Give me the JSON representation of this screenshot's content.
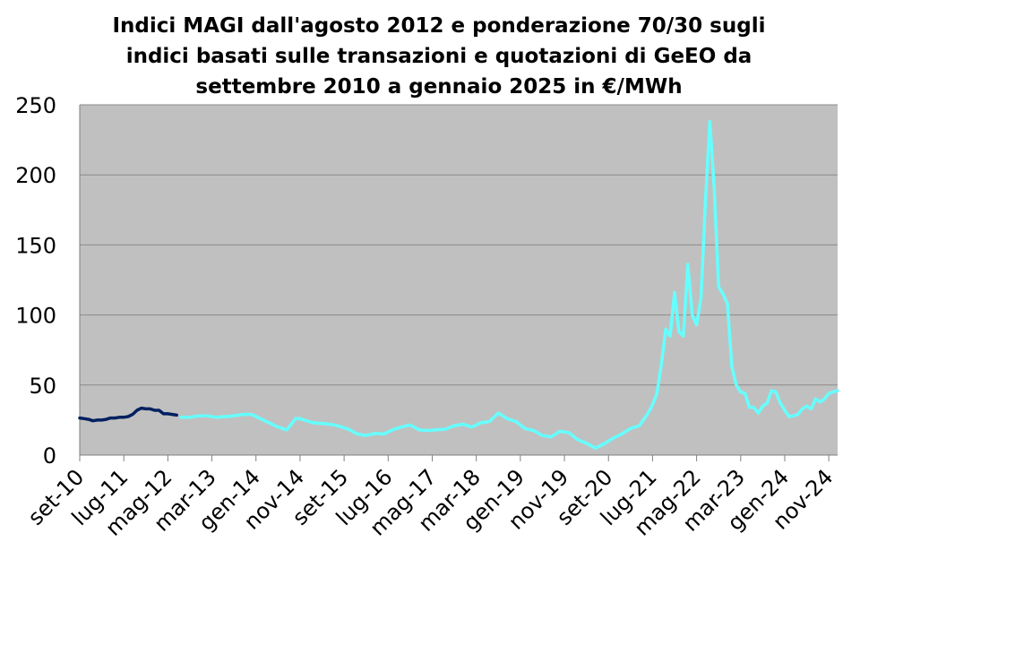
{
  "chart_data": {
    "type": "line",
    "title_lines": [
      "Indici MAGI dall'agosto 2012 e ponderazione 70/30 sugli",
      "indici basati sulle transazioni e quotazioni di GeEO da",
      "settembre 2010 a gennaio 2025 in €/MWh"
    ],
    "xlabel": "",
    "ylabel": "",
    "ylim": [
      0,
      250
    ],
    "yticks": [
      "0",
      "50",
      "100",
      "150",
      "200",
      "250"
    ],
    "xtick_labels": [
      "set-10",
      "lug-11",
      "mag-12",
      "mar-13",
      "gen-14",
      "nov-14",
      "set-15",
      "lug-16",
      "mag-17",
      "mar-18",
      "gen-19",
      "nov-19",
      "set-20",
      "lug-21",
      "mag-22",
      "mar-23",
      "gen-24",
      "nov-24"
    ],
    "grid": true,
    "legend": "none",
    "plot_background": "#c0c0c0",
    "series": [
      {
        "color": "#002060",
        "x": [
          "2010-09",
          "2010-10",
          "2010-11",
          "2010-12",
          "2011-01",
          "2011-02",
          "2011-03",
          "2011-04",
          "2011-05",
          "2011-06",
          "2011-07",
          "2011-08",
          "2011-09",
          "2011-10",
          "2011-11",
          "2011-12",
          "2012-01",
          "2012-02",
          "2012-03",
          "2012-04",
          "2012-05",
          "2012-06",
          "2012-07"
        ],
        "values": [
          26.5,
          26,
          25.5,
          24.5,
          25,
          25,
          25.5,
          26.5,
          26.5,
          27,
          27,
          27.5,
          29,
          32,
          33.5,
          33,
          33,
          32,
          32,
          29.5,
          29.5,
          29,
          28.5
        ]
      },
      {
        "color": "#66ffff",
        "x": [
          "2012-08",
          "2012-10",
          "2012-12",
          "2013-02",
          "2013-04",
          "2013-06",
          "2013-08",
          "2013-10",
          "2013-12",
          "2014-02",
          "2014-04",
          "2014-06",
          "2014-08",
          "2014-10",
          "2014-11",
          "2014-12",
          "2015-02",
          "2015-04",
          "2015-06",
          "2015-08",
          "2015-10",
          "2015-12",
          "2016-02",
          "2016-04",
          "2016-06",
          "2016-08",
          "2016-10",
          "2016-12",
          "2017-02",
          "2017-04",
          "2017-06",
          "2017-08",
          "2017-10",
          "2017-12",
          "2018-02",
          "2018-04",
          "2018-06",
          "2018-08",
          "2018-10",
          "2018-12",
          "2019-02",
          "2019-04",
          "2019-06",
          "2019-08",
          "2019-10",
          "2019-12",
          "2020-02",
          "2020-04",
          "2020-06",
          "2020-08",
          "2020-10",
          "2020-12",
          "2021-02",
          "2021-04",
          "2021-06",
          "2021-07",
          "2021-08",
          "2021-09",
          "2021-10",
          "2021-11",
          "2021-12",
          "2022-01",
          "2022-02",
          "2022-03",
          "2022-04",
          "2022-05",
          "2022-06",
          "2022-07",
          "2022-08",
          "2022-09",
          "2022-10",
          "2022-11",
          "2022-12",
          "2023-01",
          "2023-02",
          "2023-03",
          "2023-04",
          "2023-05",
          "2023-06",
          "2023-07",
          "2023-08",
          "2023-09",
          "2023-10",
          "2023-11",
          "2023-12",
          "2024-01",
          "2024-02",
          "2024-03",
          "2024-04",
          "2024-05",
          "2024-06",
          "2024-07",
          "2024-08",
          "2024-09",
          "2024-10",
          "2024-11",
          "2024-12",
          "2025-01"
        ],
        "values": [
          27,
          27,
          28,
          28,
          27,
          27.5,
          28,
          29,
          29,
          26,
          23,
          20,
          18,
          26,
          26,
          25,
          23,
          22.5,
          22,
          20.5,
          18.5,
          15,
          14,
          15.5,
          15,
          18,
          20,
          21.5,
          18,
          17.5,
          18,
          18.5,
          21,
          22,
          20,
          23,
          24,
          30,
          26,
          24,
          19,
          17.5,
          14,
          13,
          17,
          16,
          11,
          8.5,
          5,
          8,
          12,
          15,
          19,
          21,
          30,
          36,
          44,
          65,
          90,
          85,
          116,
          88,
          85,
          136,
          100,
          93,
          112,
          180,
          238,
          190,
          120,
          115,
          108,
          63,
          50,
          45,
          44,
          34,
          34,
          30,
          35,
          37,
          46,
          45,
          37,
          32,
          27.5,
          28,
          29,
          33,
          35,
          33,
          40,
          38,
          40,
          44,
          45,
          46
        ]
      }
    ]
  }
}
